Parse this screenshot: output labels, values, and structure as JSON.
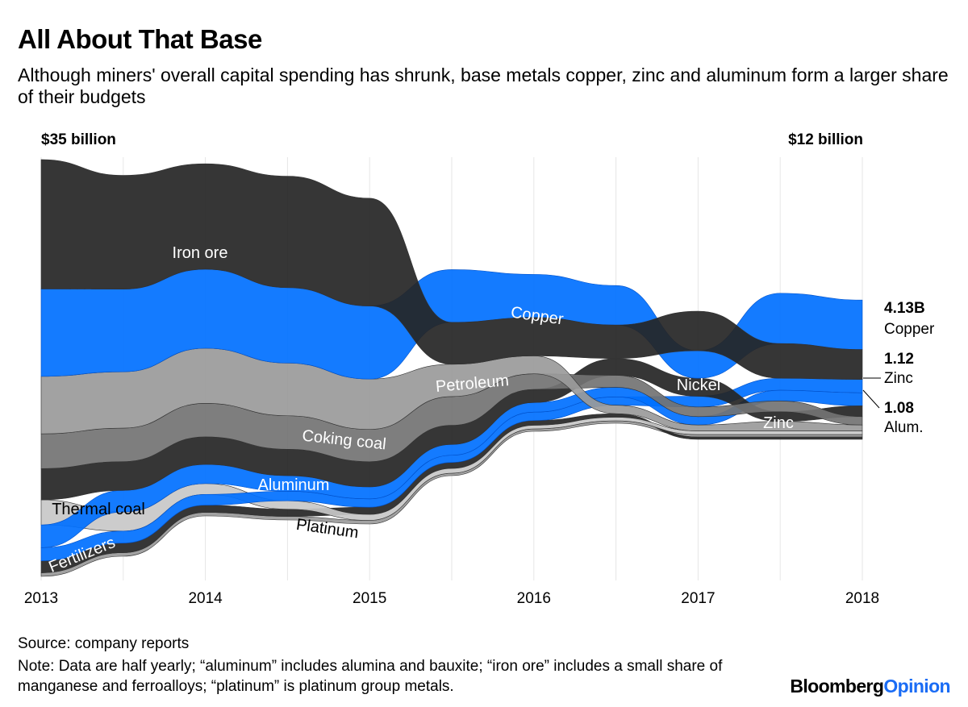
{
  "header": {
    "title": "All About That Base",
    "subtitle": "Although miners' overall capital spending has shrunk, base metals copper, zinc and aluminum form a larger share of their budgets"
  },
  "footer": {
    "source": "Source: company reports",
    "note": "Note: Data are half yearly; “aluminum” includes alumina and bauxite; “iron ore” includes a small share of manganese and ferroalloys; “platinum” is platinum group metals.",
    "brand_part1": "Bloomberg",
    "brand_part2": "Opinion"
  },
  "colors": {
    "blue": "#0070ff",
    "black": "#252525",
    "gray_light": "#c8c8c8",
    "gray_mid": "#9a9a9a",
    "gray_dark": "#737373",
    "brand_blue": "#1a6cf5",
    "grid": "#e6e6e6"
  },
  "chart_data": {
    "type": "area",
    "subtype": "ranked-ribbon (bump area)",
    "title": "All About That Base",
    "x": [
      "2013",
      "2013H2",
      "2014",
      "2014H2",
      "2015",
      "2015H2",
      "2016",
      "2016H2",
      "2017",
      "2017H2",
      "2018"
    ],
    "xtick_labels": [
      "2013",
      "2014",
      "2015",
      "2016",
      "2017",
      "2018"
    ],
    "ylabel_start": "$35 billion",
    "ylabel_end": "$12 billion",
    "units": "USD billions",
    "series": [
      {
        "name": "Iron ore",
        "color": "#252525",
        "values": [
          10.8,
          9.5,
          8.8,
          9.3,
          9.0,
          3.5,
          3.2,
          2.8,
          3.3,
          2.9,
          2.5
        ]
      },
      {
        "name": "Copper",
        "color": "#0070ff",
        "values": [
          7.3,
          6.9,
          6.6,
          6.3,
          6.1,
          4.4,
          3.6,
          3.3,
          2.3,
          4.2,
          4.13
        ]
      },
      {
        "name": "Petroleum",
        "color": "#9a9a9a",
        "values": [
          4.8,
          4.7,
          4.6,
          4.4,
          4.2,
          2.7,
          1.5,
          0.7,
          0.5,
          0.8,
          0.5
        ]
      },
      {
        "name": "Coking coal",
        "color": "#737373",
        "values": [
          2.9,
          2.8,
          2.8,
          2.8,
          2.7,
          2.4,
          1.3,
          1.0,
          0.8,
          0.9,
          0.7
        ]
      },
      {
        "name": "Nickel",
        "color": "#252525",
        "values": [
          2.6,
          2.4,
          2.3,
          2.2,
          2.1,
          1.6,
          1.1,
          1.4,
          1.5,
          0.8,
          0.9
        ]
      },
      {
        "name": "Aluminum",
        "color": "#0070ff",
        "values": [
          1.9,
          1.8,
          1.6,
          1.3,
          1.0,
          0.9,
          0.8,
          0.8,
          0.7,
          0.9,
          1.08
        ]
      },
      {
        "name": "Zinc",
        "color": "#0070ff",
        "values": [
          1.1,
          1.0,
          0.9,
          0.8,
          0.7,
          0.6,
          0.7,
          0.7,
          0.9,
          1.0,
          1.12
        ]
      },
      {
        "name": "Thermal coal",
        "color": "#c8c8c8",
        "values": [
          2.1,
          1.6,
          0.9,
          0.7,
          0.5,
          0.4,
          0.3,
          0.3,
          0.3,
          0.3,
          0.3
        ]
      },
      {
        "name": "Fertilizers",
        "color": "#252525",
        "values": [
          1.0,
          0.8,
          0.6,
          0.6,
          0.6,
          0.5,
          0.4,
          0.3,
          0.2,
          0.2,
          0.2
        ]
      },
      {
        "name": "Platinum",
        "color": "#9a9a9a",
        "values": [
          0.3,
          0.3,
          0.3,
          0.3,
          0.3,
          0.2,
          0.2,
          0.2,
          0.2,
          0.2,
          0.2
        ]
      }
    ],
    "totals": {
      "start": 35,
      "end": 12
    },
    "inline_labels": [
      {
        "text": "Iron ore",
        "series": "Iron ore",
        "color": "#ffffff"
      },
      {
        "text": "Copper",
        "series": "Copper",
        "color": "#ffffff"
      },
      {
        "text": "Petroleum",
        "series": "Petroleum",
        "color": "#ffffff"
      },
      {
        "text": "Coking coal",
        "series": "Coking coal",
        "color": "#ffffff"
      },
      {
        "text": "Aluminum",
        "series": "Aluminum",
        "color": "#ffffff"
      },
      {
        "text": "Thermal coal",
        "series": "Thermal coal",
        "color": "#000000"
      },
      {
        "text": "Platinum",
        "series": "Platinum",
        "color": "#000000"
      },
      {
        "text": "Fertilizers",
        "series": "Fertilizers",
        "color": "#ffffff"
      },
      {
        "text": "Nickel",
        "series": "Nickel",
        "color": "#ffffff"
      },
      {
        "text": "Zinc",
        "series": "Zinc",
        "color": "#ffffff"
      }
    ],
    "end_labels": [
      {
        "value": "4.13B",
        "name": "Copper"
      },
      {
        "value": "1.12",
        "name": "Zinc"
      },
      {
        "value": "1.08",
        "name": "Alum."
      }
    ],
    "grid": true,
    "legend": "none (inline labels)"
  }
}
